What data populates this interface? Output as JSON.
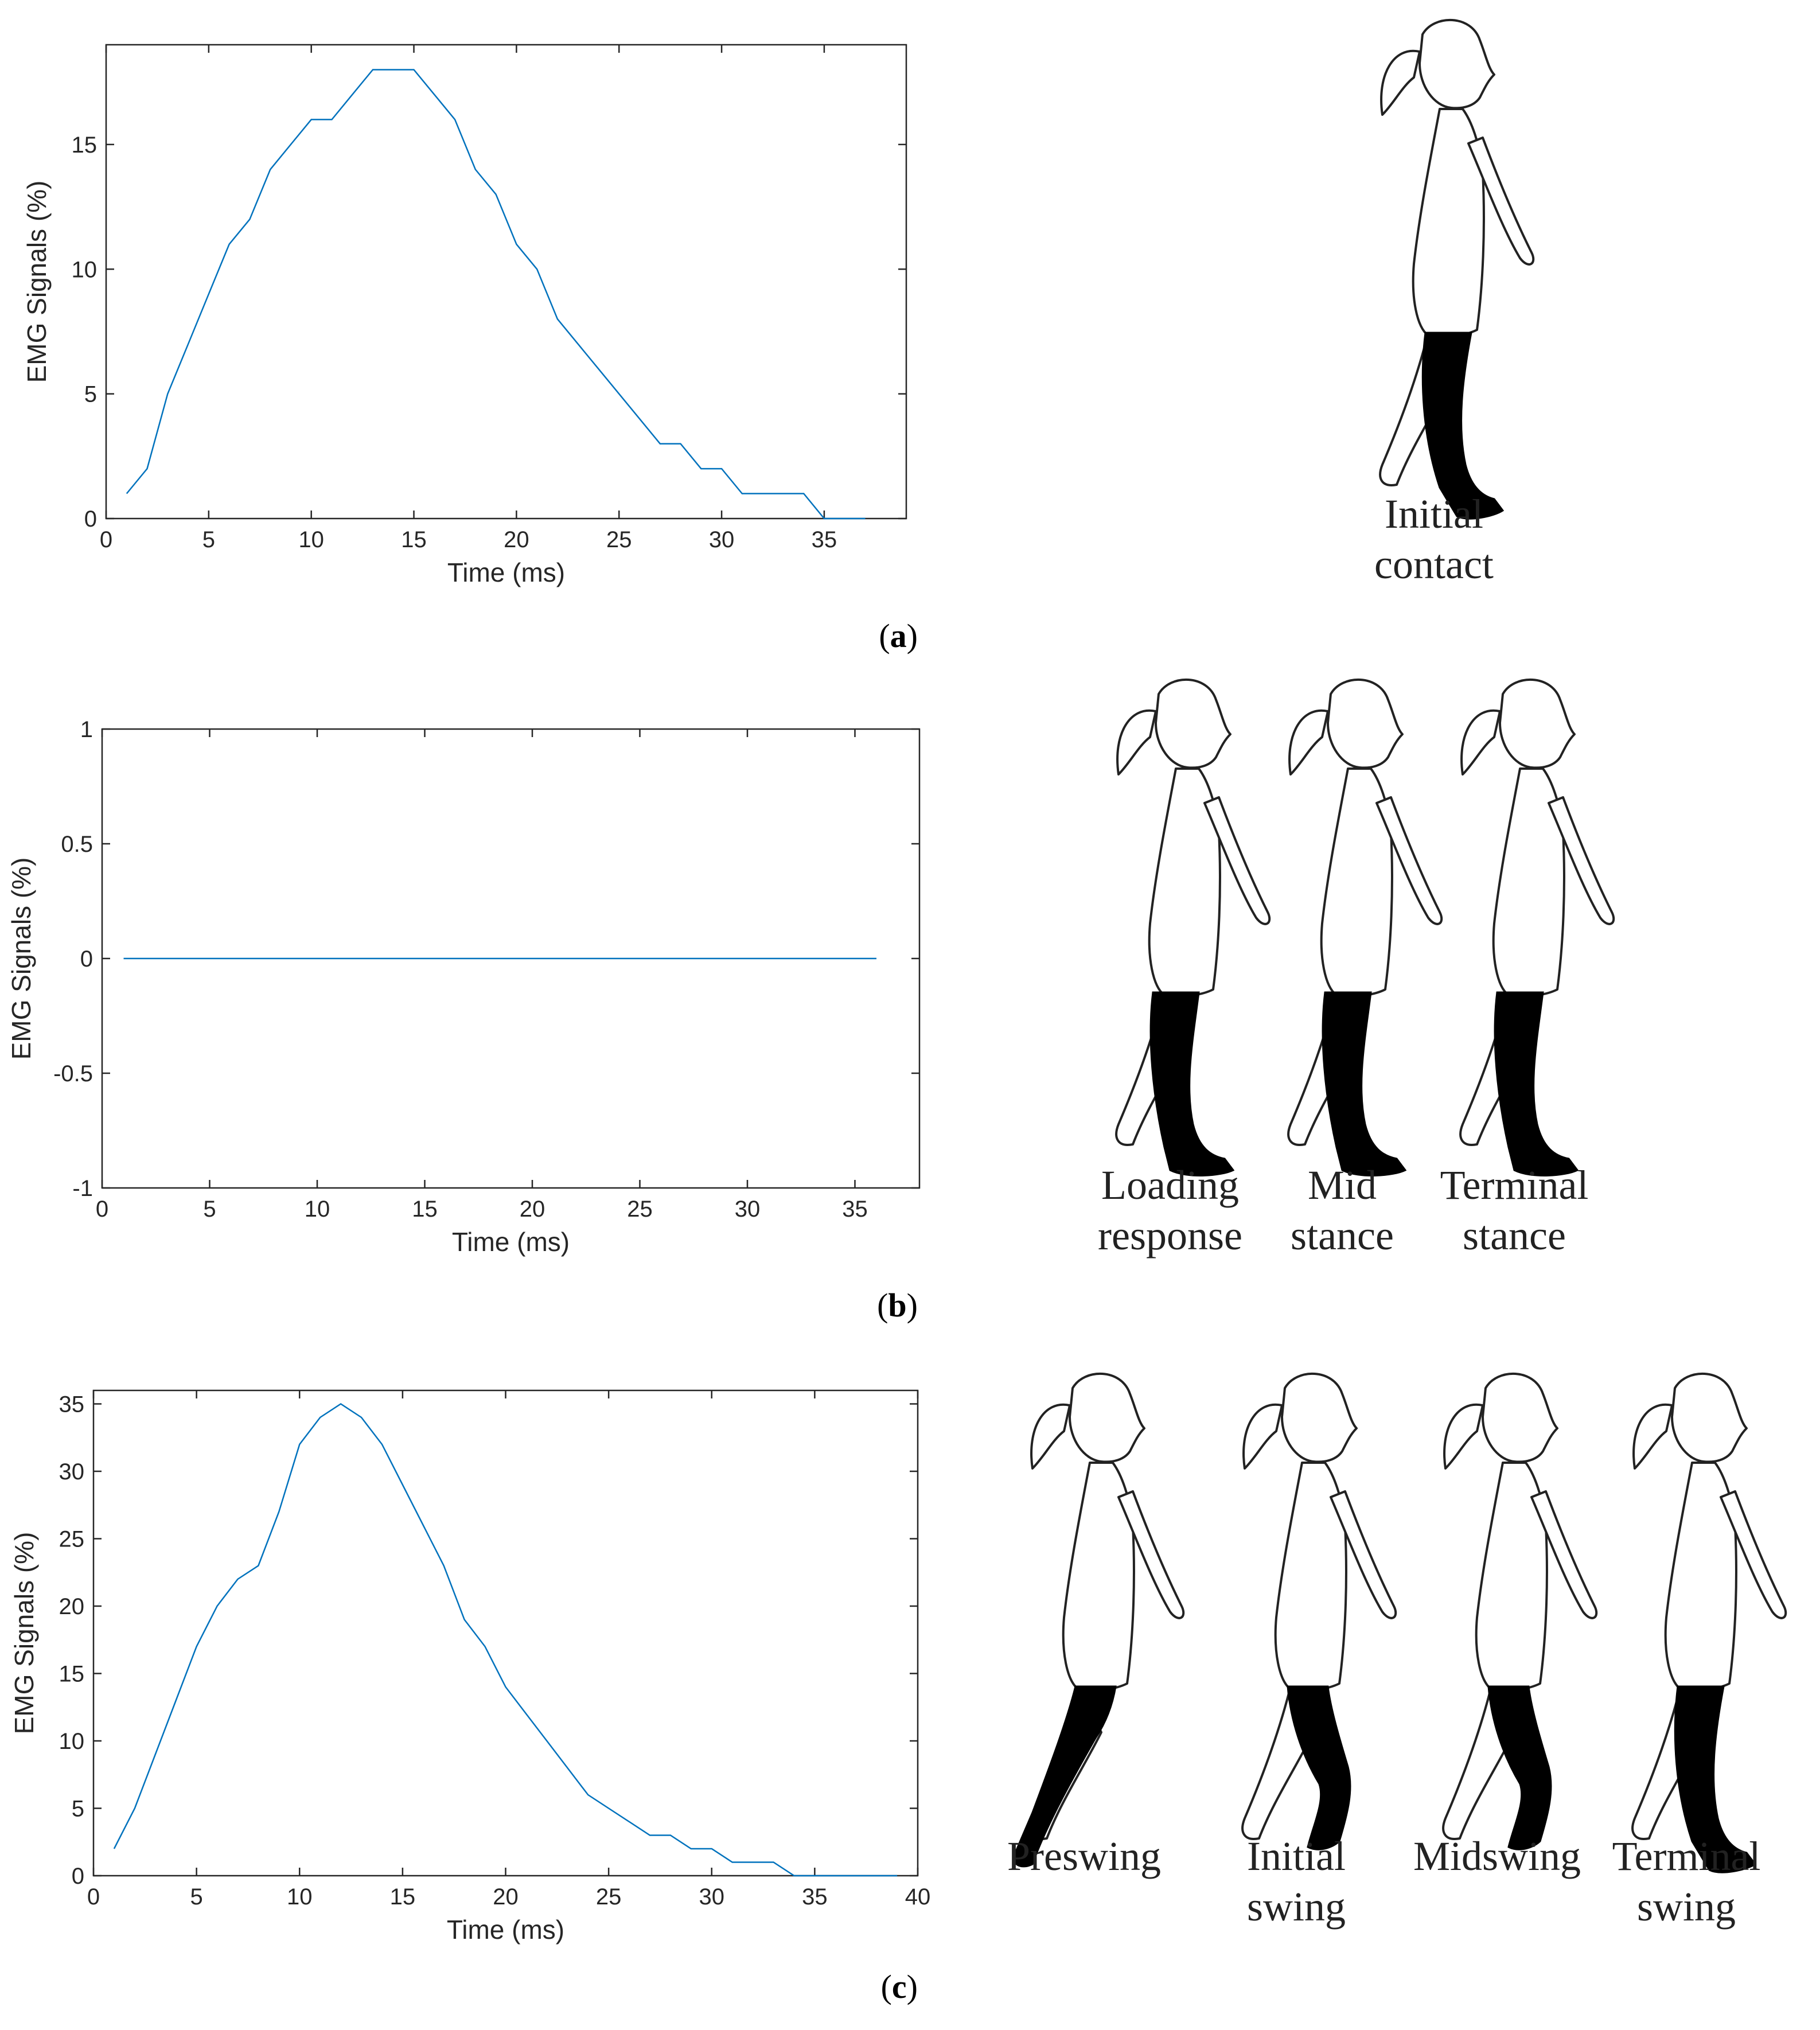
{
  "chart_data": [
    {
      "type": "line",
      "panel": "a",
      "xlabel": "Time (ms)",
      "ylabel": "EMG Signals (%)",
      "xlim": [
        0,
        39
      ],
      "ylim": [
        0,
        19
      ],
      "xticks": [
        0,
        5,
        10,
        15,
        20,
        25,
        30,
        35
      ],
      "yticks": [
        0,
        5,
        10,
        15
      ],
      "color": "#0072BD",
      "x": [
        1,
        2,
        3,
        4,
        5,
        6,
        7,
        8,
        9,
        10,
        11,
        12,
        13,
        14,
        15,
        16,
        17,
        18,
        19,
        20,
        21,
        22,
        23,
        24,
        25,
        26,
        27,
        28,
        29,
        30,
        31,
        32,
        33,
        34,
        35,
        36,
        37
      ],
      "y": [
        1,
        2,
        5,
        7,
        9,
        11,
        12,
        14,
        15,
        16,
        16,
        17,
        18,
        18,
        18,
        17,
        16,
        14,
        13,
        11,
        10,
        8,
        7,
        6,
        5,
        4,
        3,
        3,
        2,
        2,
        1,
        1,
        1,
        1,
        0,
        0,
        0
      ]
    },
    {
      "type": "line",
      "panel": "b",
      "xlabel": "Time (ms)",
      "ylabel": "EMG Signals (%)",
      "xlim": [
        0,
        38
      ],
      "ylim": [
        -1,
        1
      ],
      "xticks": [
        0,
        5,
        10,
        15,
        20,
        25,
        30,
        35
      ],
      "yticks": [
        -1,
        -0.5,
        0,
        0.5,
        1
      ],
      "color": "#0072BD",
      "x": [
        1,
        36
      ],
      "y": [
        0,
        0
      ]
    },
    {
      "type": "line",
      "panel": "c",
      "xlabel": "Time (ms)",
      "ylabel": "EMG Signals (%)",
      "xlim": [
        0,
        40
      ],
      "ylim": [
        0,
        36
      ],
      "xticks": [
        0,
        5,
        10,
        15,
        20,
        25,
        30,
        35,
        40
      ],
      "yticks": [
        0,
        5,
        10,
        15,
        20,
        25,
        30,
        35
      ],
      "color": "#0072BD",
      "x": [
        1,
        2,
        3,
        4,
        5,
        6,
        7,
        8,
        9,
        10,
        11,
        12,
        13,
        14,
        15,
        16,
        17,
        18,
        19,
        20,
        21,
        22,
        23,
        24,
        25,
        26,
        27,
        28,
        29,
        30,
        31,
        32,
        33,
        34,
        35,
        36,
        37,
        38,
        39
      ],
      "y": [
        2,
        5,
        9,
        13,
        17,
        20,
        22,
        23,
        27,
        32,
        34,
        35,
        34,
        32,
        29,
        26,
        23,
        19,
        17,
        14,
        12,
        10,
        8,
        6,
        5,
        4,
        3,
        3,
        2,
        2,
        1,
        1,
        1,
        0,
        0,
        0,
        0,
        0,
        0
      ]
    }
  ],
  "panel_labels": [
    "a",
    "b",
    "c"
  ],
  "figures": {
    "a": {
      "captions": [
        [
          "Initial",
          "contact"
        ]
      ]
    },
    "b": {
      "captions": [
        [
          "Loading",
          "response"
        ],
        [
          "Mid",
          "stance"
        ],
        [
          "Terminal",
          "stance"
        ]
      ]
    },
    "c": {
      "captions": [
        [
          "Preswing"
        ],
        [
          "Initial",
          "swing"
        ],
        [
          "Midswing"
        ],
        [
          "Terminal",
          "swing"
        ]
      ]
    }
  }
}
